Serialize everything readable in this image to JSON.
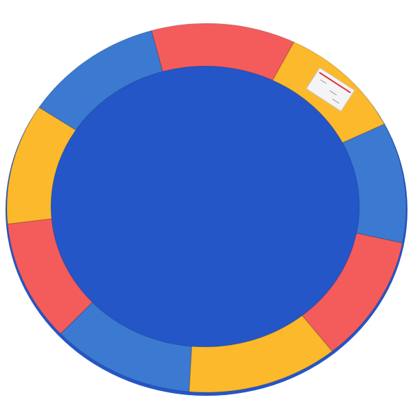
{
  "image": {
    "subject": "trampoline-safety-pad",
    "colors": {
      "blue": "#3c79d1",
      "red": "#f45c5c",
      "yellow": "#fbb92b",
      "edge": "#2456c8",
      "background": "#ffffff"
    },
    "segments": [
      "red",
      "yellow",
      "blue",
      "red",
      "yellow",
      "blue",
      "red",
      "yellow",
      "blue"
    ],
    "label_icon": "warning-label-sticker"
  }
}
